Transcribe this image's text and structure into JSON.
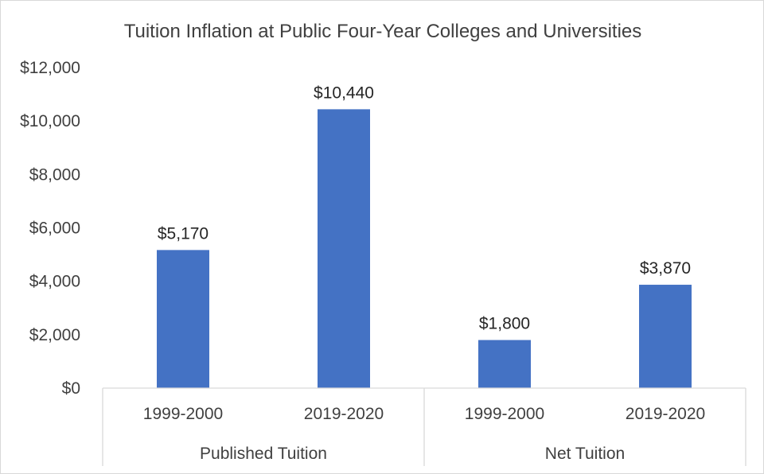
{
  "chart_data": {
    "type": "bar",
    "title": "Tuition Inflation at Public Four-Year Colleges and Universities",
    "groups": [
      {
        "label": "Published Tuition",
        "categories": [
          "1999-2000",
          "2019-2020"
        ]
      },
      {
        "label": "Net Tuition",
        "categories": [
          "1999-2000",
          "2019-2020"
        ]
      }
    ],
    "values": [
      5170,
      10440,
      1800,
      3870
    ],
    "data_labels": [
      "$5,170",
      "$10,440",
      "$1,800",
      "$3,870"
    ],
    "y_ticks": [
      0,
      2000,
      4000,
      6000,
      8000,
      10000,
      12000
    ],
    "y_tick_labels": [
      "$0",
      "$2,000",
      "$4,000",
      "$6,000",
      "$8,000",
      "$10,000",
      "$12,000"
    ],
    "ylim": [
      0,
      12000
    ],
    "grid": false,
    "legend": "none",
    "bar_color": "#4472c4"
  }
}
